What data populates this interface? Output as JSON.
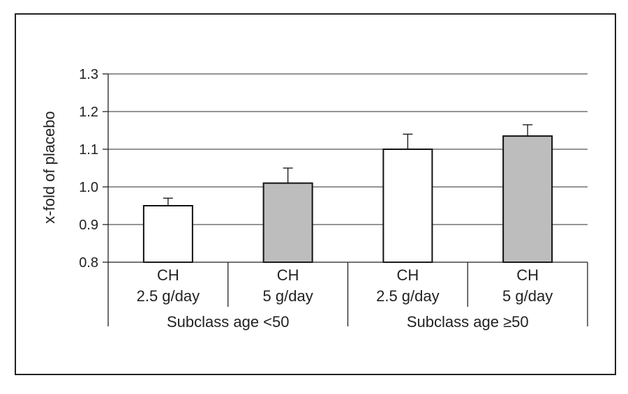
{
  "chart_data": {
    "type": "bar",
    "ylabel": "x-fold of placebo",
    "xlabel": "",
    "ylim": [
      0.8,
      1.3
    ],
    "yticks": [
      0.8,
      0.9,
      1.0,
      1.1,
      1.2,
      1.3
    ],
    "ytick_labels": [
      "0.8",
      "0.9",
      "1.0",
      "1.1",
      "1.2",
      "1.3"
    ],
    "grid": true,
    "categories": [
      {
        "line1": "CH",
        "line2": "2.5 g/day"
      },
      {
        "line1": "CH",
        "line2": "5 g/day"
      },
      {
        "line1": "CH",
        "line2": "2.5 g/day"
      },
      {
        "line1": "CH",
        "line2": "5 g/day"
      }
    ],
    "groups": [
      {
        "label": "Subclass age <50",
        "categories": [
          0,
          1
        ]
      },
      {
        "label": "Subclass age ≥50",
        "categories": [
          2,
          3
        ]
      }
    ],
    "values": [
      0.95,
      1.01,
      1.1,
      1.135
    ],
    "error_upper": [
      0.97,
      1.05,
      1.14,
      1.165
    ],
    "bar_fills": [
      "#ffffff",
      "#bdbdbd",
      "#ffffff",
      "#bdbdbd"
    ],
    "colors": {
      "outline": "#111111",
      "grid": "#555555",
      "frame": "#222222"
    }
  }
}
